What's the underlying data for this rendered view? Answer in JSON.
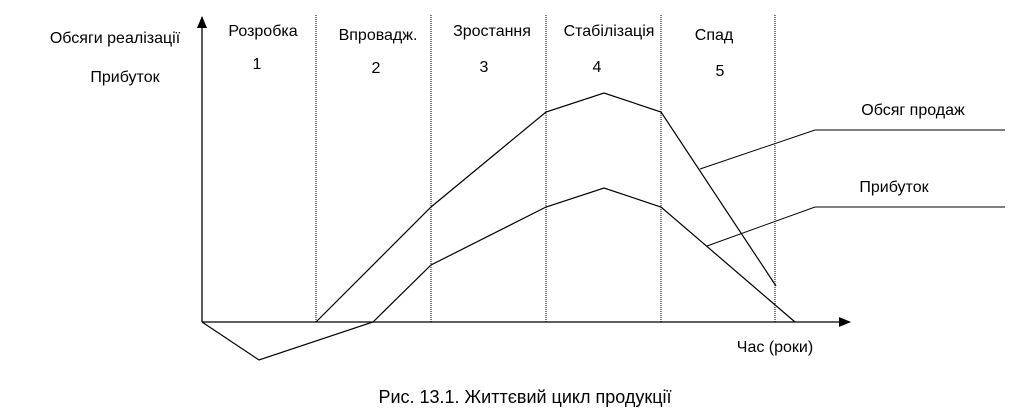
{
  "axes": {
    "y_label_1": "Обсяги реалізації",
    "y_label_2": "Прибуток",
    "x_label": "Час (роки)"
  },
  "stages": [
    {
      "name": "Розробка",
      "number": "1"
    },
    {
      "name": "Впровадж.",
      "number": "2"
    },
    {
      "name": "Зростання",
      "number": "3"
    },
    {
      "name": "Стабілізація",
      "number": "4"
    },
    {
      "name": "Спад",
      "number": "5"
    }
  ],
  "legend": {
    "sales": "Обсяг продаж",
    "profit": "Прибуток"
  },
  "caption": "Рис. 13.1. Життєвий цикл продукції",
  "colors": {
    "line": "#000000",
    "background": "#ffffff"
  }
}
